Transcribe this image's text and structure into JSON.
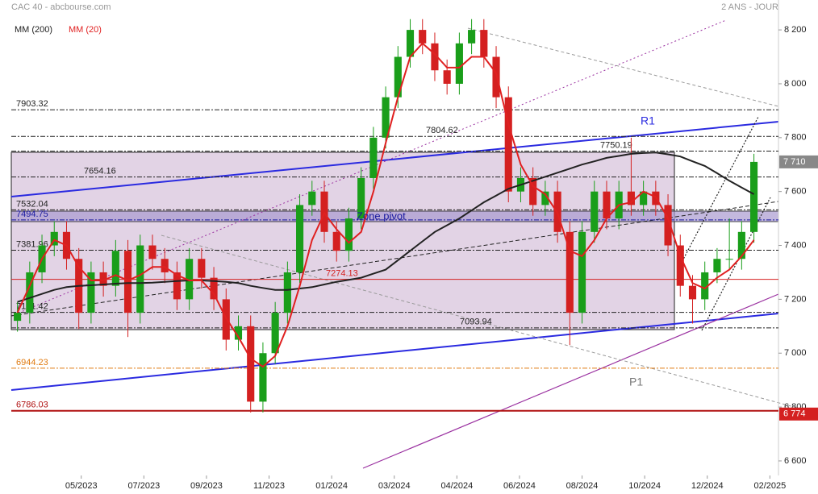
{
  "chart_data": {
    "type": "candlestick",
    "title": "CAC 40 - abcbourse.com",
    "subtitle": "2 ANS - JOUR",
    "up_color": "#1a9e1a",
    "down_color": "#d42020",
    "ohlc": {
      "open": [
        7120,
        7150,
        7300,
        7400,
        7450,
        7350,
        7150,
        7300,
        7250,
        7380,
        7150,
        7400,
        7350,
        7300,
        7200,
        7350,
        7280,
        7200,
        7050,
        7100,
        6820,
        7000,
        7150,
        7300,
        7550,
        7600,
        7450,
        7380,
        7500,
        7650,
        7800,
        7950,
        8100,
        8200,
        8150,
        8050,
        8000,
        8150,
        8200,
        8100,
        7950,
        7600,
        7650,
        7550,
        7600,
        7450,
        7150,
        7450,
        7600,
        7500,
        7600,
        7550,
        7600,
        7550,
        7400,
        7250,
        7200,
        7300,
        7350,
        7350,
        7450
      ],
      "high": [
        7190,
        7340,
        7440,
        7490,
        7490,
        7390,
        7340,
        7340,
        7420,
        7420,
        7440,
        7440,
        7390,
        7340,
        7390,
        7390,
        7320,
        7240,
        7140,
        7140,
        7040,
        7190,
        7340,
        7590,
        7640,
        7640,
        7490,
        7540,
        7690,
        7840,
        7990,
        8140,
        8240,
        8240,
        8190,
        8090,
        8190,
        8240,
        8240,
        8140,
        7990,
        7690,
        7690,
        7640,
        7640,
        7490,
        7490,
        7640,
        7640,
        7640,
        7800,
        7640,
        7640,
        7590,
        7440,
        7290,
        7340,
        7390,
        7500,
        7490,
        7740
      ],
      "low": [
        7080,
        7110,
        7260,
        7360,
        7310,
        7090,
        7110,
        7210,
        7210,
        7060,
        7110,
        7310,
        7260,
        7160,
        7160,
        7240,
        7160,
        7010,
        7010,
        6780,
        6780,
        6960,
        7110,
        7260,
        7510,
        7410,
        7340,
        7340,
        7460,
        7610,
        7760,
        7910,
        8060,
        8110,
        8010,
        7960,
        7960,
        8110,
        8060,
        7910,
        7560,
        7560,
        7510,
        7510,
        7410,
        7030,
        7110,
        7410,
        7460,
        7460,
        7510,
        7510,
        7510,
        7360,
        7210,
        7110,
        7160,
        7260,
        7310,
        7310,
        7410
      ],
      "close": [
        7150,
        7300,
        7400,
        7450,
        7350,
        7150,
        7300,
        7250,
        7380,
        7150,
        7400,
        7350,
        7300,
        7200,
        7350,
        7280,
        7200,
        7050,
        7100,
        6820,
        7000,
        7150,
        7300,
        7550,
        7600,
        7450,
        7380,
        7500,
        7650,
        7800,
        7950,
        8100,
        8200,
        8150,
        8050,
        8000,
        8150,
        8200,
        8100,
        7950,
        7600,
        7650,
        7550,
        7600,
        7450,
        7150,
        7450,
        7600,
        7500,
        7600,
        7550,
        7600,
        7550,
        7400,
        7250,
        7200,
        7300,
        7350,
        7350,
        7450,
        7710
      ]
    },
    "series": [
      {
        "name": "MM (200)",
        "color": "#222222",
        "values": [
          7190,
          7205,
          7220,
          7235,
          7245,
          7250,
          7252,
          7255,
          7258,
          7260,
          7260,
          7262,
          7265,
          7268,
          7270,
          7270,
          7268,
          7265,
          7260,
          7250,
          7242,
          7235,
          7235,
          7240,
          7245,
          7255,
          7265,
          7272,
          7280,
          7295,
          7310,
          7345,
          7380,
          7415,
          7450,
          7475,
          7500,
          7530,
          7560,
          7585,
          7610,
          7625,
          7640,
          7655,
          7670,
          7685,
          7700,
          7712,
          7725,
          7732,
          7740,
          7743,
          7745,
          7738,
          7730,
          7712,
          7695,
          7668,
          7640,
          7615,
          7590
        ]
      },
      {
        "name": "MM (20)",
        "color": "#e02020",
        "values": [
          7150,
          7250,
          7350,
          7420,
          7400,
          7320,
          7270,
          7270,
          7290,
          7270,
          7290,
          7320,
          7320,
          7290,
          7270,
          7270,
          7220,
          7130,
          7060,
          6980,
          6950,
          6990,
          7100,
          7250,
          7420,
          7520,
          7460,
          7410,
          7450,
          7600,
          7780,
          7950,
          8100,
          8150,
          8110,
          8060,
          8060,
          8100,
          8100,
          8040,
          7850,
          7700,
          7620,
          7590,
          7520,
          7380,
          7360,
          7420,
          7500,
          7550,
          7560,
          7600,
          7580,
          7500,
          7360,
          7260,
          7240,
          7280,
          7310,
          7360,
          7420
        ]
      }
    ],
    "xlim": [
      -0.5,
      62
    ],
    "xticks": [
      {
        "value": 5.2,
        "label": "05/2023"
      },
      {
        "value": 10.3,
        "label": "07/2023"
      },
      {
        "value": 15.4,
        "label": "09/2023"
      },
      {
        "value": 20.5,
        "label": "11/2023"
      },
      {
        "value": 25.6,
        "label": "01/2024"
      },
      {
        "value": 30.7,
        "label": "03/2024"
      },
      {
        "value": 35.8,
        "label": "04/2024"
      },
      {
        "value": 40.9,
        "label": "06/2024"
      },
      {
        "value": 46.0,
        "label": "08/2024"
      },
      {
        "value": 51.1,
        "label": "10/2024"
      },
      {
        "value": 56.2,
        "label": "12/2024"
      },
      {
        "value": 61.3,
        "label": "02/2025"
      }
    ],
    "ylim": [
      6546,
      8311
    ],
    "yticks": [
      {
        "value": 6600,
        "label": "6 600"
      },
      {
        "value": 6800,
        "label": "6 800"
      },
      {
        "value": 7000,
        "label": "7 000"
      },
      {
        "value": 7200,
        "label": "7 200"
      },
      {
        "value": 7400,
        "label": "7 400"
      },
      {
        "value": 7600,
        "label": "7 600"
      },
      {
        "value": 7800,
        "label": "7 800"
      },
      {
        "value": 8000,
        "label": "8 000"
      },
      {
        "value": 8200,
        "label": "8 200"
      }
    ],
    "levels": [
      {
        "value": 7903.32,
        "color": "#222222"
      },
      {
        "value": 7804.62,
        "color": "#222222"
      },
      {
        "value": 7750.19,
        "color": "#222222"
      },
      {
        "value": 7654.16,
        "color": "#222222"
      },
      {
        "value": 7532.04,
        "color": "#222222"
      },
      {
        "value": 7494.75,
        "color": "#1a1aa0"
      },
      {
        "value": 7381.96,
        "color": "#222222"
      },
      {
        "value": 7274.13,
        "color": "#d42020"
      },
      {
        "value": 7151.42,
        "color": "#222222"
      },
      {
        "value": 7093.94,
        "color": "#222222"
      },
      {
        "value": 6944.23,
        "color": "#e07a10"
      },
      {
        "value": 6786.03,
        "color": "#b01010"
      }
    ],
    "price_tags": [
      {
        "value": 7710,
        "label": "7 710",
        "color": "#888888"
      },
      {
        "value": 6774,
        "label": "6 774",
        "color": "#d42020"
      }
    ],
    "annotations": [
      "R1",
      "P1",
      "Zone pivot"
    ]
  }
}
